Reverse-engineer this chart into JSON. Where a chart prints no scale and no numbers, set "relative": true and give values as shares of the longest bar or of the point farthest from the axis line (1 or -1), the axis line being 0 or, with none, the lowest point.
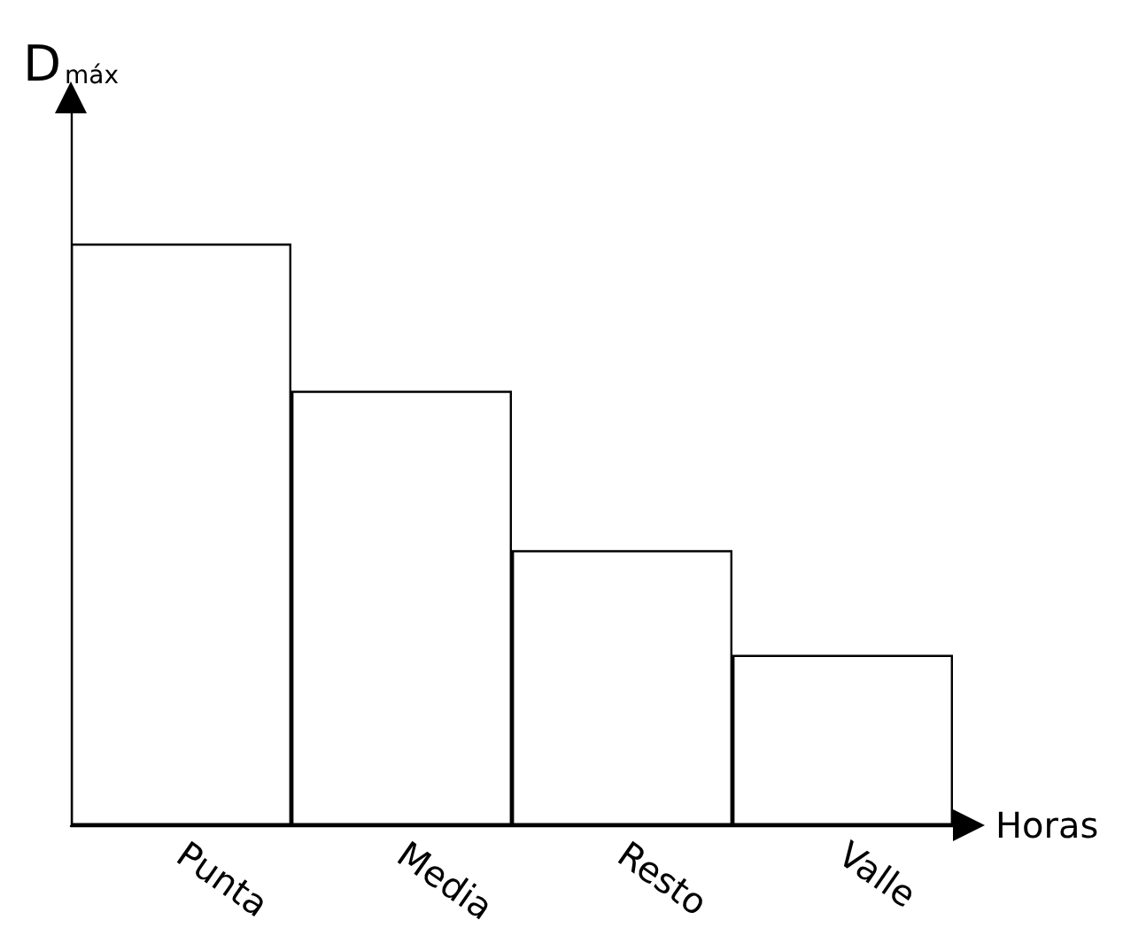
{
  "chart_data": {
    "type": "bar",
    "relative": true,
    "xlabel": "Horas",
    "ylabel": "D$_{máx}$",
    "categories": [
      "Punta",
      "Media",
      "Resto",
      "Valle"
    ],
    "values": [
      1,
      0.747,
      0.473,
      0.293
    ],
    "color": "#ffffff",
    "grid": false
  }
}
